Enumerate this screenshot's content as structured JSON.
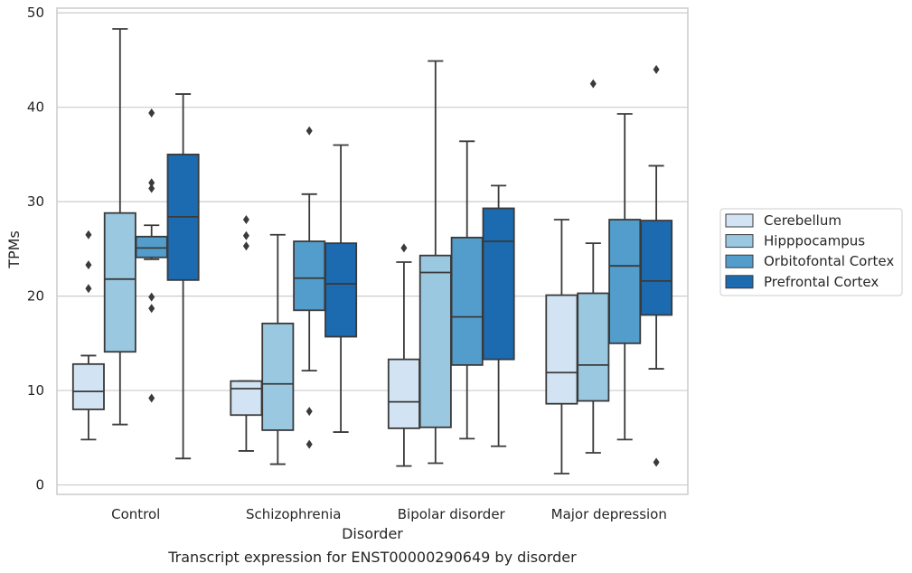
{
  "caption": "Transcript expression for ENST00000290649 by disorder",
  "chart_data": {
    "type": "box",
    "title": "",
    "xlabel": "Disorder",
    "ylabel": "TPMs",
    "ylim": [
      -1,
      50.5
    ],
    "yticks": [
      0,
      10,
      20,
      30,
      40,
      50
    ],
    "grid": "horizontal",
    "legend_position": "right",
    "categories": [
      "Control",
      "Schizophrenia",
      "Bipolar disorder",
      "Major depression"
    ],
    "series": [
      {
        "name": "Cerebellum",
        "color": "#d2e3f3",
        "boxes": [
          {
            "whisker_low": 4.8,
            "q1": 8.0,
            "median": 9.9,
            "q3": 12.8,
            "whisker_high": 13.7,
            "outliers": [
              20.8,
              23.3,
              26.5
            ]
          },
          {
            "whisker_low": 3.6,
            "q1": 7.4,
            "median": 10.2,
            "q3": 11.0,
            "whisker_high": 11.0,
            "outliers": [
              25.3,
              26.4,
              28.1
            ]
          },
          {
            "whisker_low": 2.0,
            "q1": 6.0,
            "median": 8.8,
            "q3": 13.3,
            "whisker_high": 23.6,
            "outliers": [
              25.1
            ]
          },
          {
            "whisker_low": 1.2,
            "q1": 8.6,
            "median": 11.9,
            "q3": 20.1,
            "whisker_high": 28.1,
            "outliers": []
          }
        ]
      },
      {
        "name": "Hipppocampus",
        "color": "#9ac8e0",
        "boxes": [
          {
            "whisker_low": 6.4,
            "q1": 14.1,
            "median": 21.8,
            "q3": 28.8,
            "whisker_high": 48.3,
            "outliers": []
          },
          {
            "whisker_low": 2.2,
            "q1": 5.8,
            "median": 10.7,
            "q3": 17.1,
            "whisker_high": 26.5,
            "outliers": []
          },
          {
            "whisker_low": 2.3,
            "q1": 6.1,
            "median": 22.5,
            "q3": 24.3,
            "whisker_high": 44.9,
            "outliers": []
          },
          {
            "whisker_low": 3.4,
            "q1": 8.9,
            "median": 12.7,
            "q3": 20.3,
            "whisker_high": 25.6,
            "outliers": [
              42.5
            ]
          }
        ]
      },
      {
        "name": "Orbitofontal Cortex",
        "color": "#529dcc",
        "boxes": [
          {
            "whisker_low": 23.9,
            "q1": 24.1,
            "median": 25.1,
            "q3": 26.3,
            "whisker_high": 27.5,
            "outliers": [
              9.2,
              18.7,
              19.9,
              31.4,
              32.0,
              39.4
            ]
          },
          {
            "whisker_low": 12.1,
            "q1": 18.5,
            "median": 21.9,
            "q3": 25.8,
            "whisker_high": 30.8,
            "outliers": [
              4.3,
              7.8,
              37.5
            ]
          },
          {
            "whisker_low": 4.9,
            "q1": 12.7,
            "median": 17.8,
            "q3": 26.2,
            "whisker_high": 36.4,
            "outliers": []
          },
          {
            "whisker_low": 4.8,
            "q1": 15.0,
            "median": 23.2,
            "q3": 28.1,
            "whisker_high": 39.3,
            "outliers": []
          }
        ]
      },
      {
        "name": "Prefrontal Cortex",
        "color": "#1c6aaf",
        "boxes": [
          {
            "whisker_low": 2.8,
            "q1": 21.7,
            "median": 28.4,
            "q3": 35.0,
            "whisker_high": 41.4,
            "outliers": []
          },
          {
            "whisker_low": 5.6,
            "q1": 15.7,
            "median": 21.3,
            "q3": 25.6,
            "whisker_high": 36.0,
            "outliers": []
          },
          {
            "whisker_low": 4.1,
            "q1": 13.3,
            "median": 25.8,
            "q3": 29.3,
            "whisker_high": 31.7,
            "outliers": []
          },
          {
            "whisker_low": 12.3,
            "q1": 18.0,
            "median": 21.6,
            "q3": 28.0,
            "whisker_high": 33.8,
            "outliers": [
              2.4,
              44.0
            ]
          }
        ]
      }
    ]
  }
}
